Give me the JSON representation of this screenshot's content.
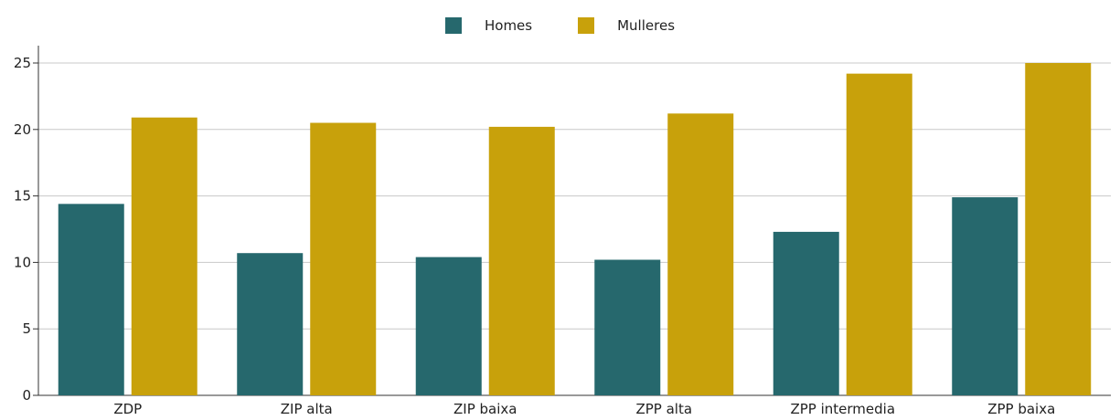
{
  "colors": {
    "homes": "#26686d",
    "mulleres": "#c8a10b",
    "grid": "#c8c8c8",
    "axis": "#333333"
  },
  "legend": [
    {
      "label": "Homes",
      "color": "#26686d"
    },
    {
      "label": "Mulleres",
      "color": "#c8a10b"
    }
  ],
  "chart_data": {
    "type": "bar",
    "categories": [
      "ZDP",
      "ZIP alta",
      "ZIP baixa",
      "ZPP alta",
      "ZPP intermedia",
      "ZPP baixa"
    ],
    "series": [
      {
        "name": "Homes",
        "values": [
          14.4,
          10.7,
          10.4,
          10.2,
          12.3,
          14.9
        ]
      },
      {
        "name": "Mulleres",
        "values": [
          20.9,
          20.5,
          20.2,
          21.2,
          24.2,
          25.0
        ]
      }
    ],
    "ylim": [
      0,
      25
    ],
    "yticks": [
      0,
      5,
      10,
      15,
      20,
      25
    ],
    "grid": true,
    "legend_position": "top-center",
    "title": "",
    "xlabel": "",
    "ylabel": ""
  }
}
